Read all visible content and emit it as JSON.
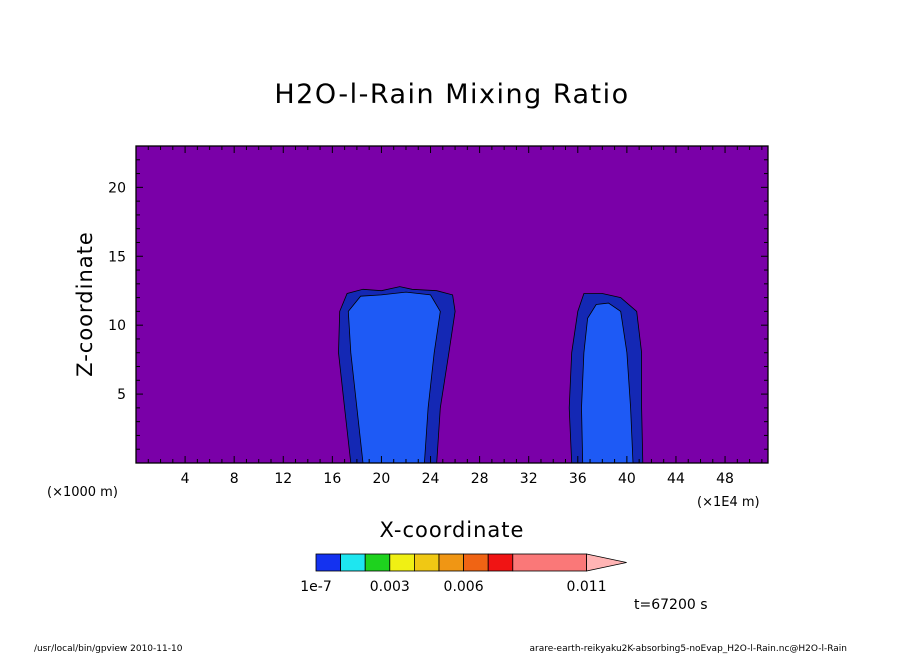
{
  "chart_data": {
    "type": "heatmap",
    "title": "H2O-l-Rain Mixing Ratio",
    "xlabel": "X-coordinate",
    "ylabel": "Z-coordinate",
    "x_unit_left": "(×1000 m)",
    "x_unit_right": "(×1E4 m)",
    "xlim": [
      0,
      51.5
    ],
    "ylim": [
      0,
      23
    ],
    "x_ticks": [
      4,
      8,
      12,
      16,
      20,
      24,
      28,
      32,
      36,
      40,
      44,
      48
    ],
    "y_ticks": [
      5,
      10,
      15,
      20
    ],
    "background_level_color": "#7a00a8",
    "colorbar": {
      "colors": [
        "#1432f0",
        "#1ee6f0",
        "#1ed21e",
        "#f0f014",
        "#f0c814",
        "#f09614",
        "#f06414",
        "#f01414",
        "#fa7878",
        "#ffb4b4"
      ],
      "labels": [
        {
          "text": "1e-7",
          "value": 0
        },
        {
          "text": "0.003",
          "value": 0.003
        },
        {
          "text": "0.006",
          "value": 0.006
        },
        {
          "text": "0.011",
          "value": 0.011
        }
      ]
    },
    "regions": [
      {
        "name": "cloud-1-outer",
        "color": "#1428b4",
        "outline": [
          [
            17.5,
            0
          ],
          [
            17,
            4
          ],
          [
            16.5,
            8
          ],
          [
            16.6,
            11
          ],
          [
            17.2,
            12.3
          ],
          [
            18.5,
            12.6
          ],
          [
            20,
            12.5
          ],
          [
            21.5,
            12.8
          ],
          [
            22.5,
            12.6
          ],
          [
            24.5,
            12.5
          ],
          [
            25.8,
            12.2
          ],
          [
            26,
            11
          ],
          [
            25.5,
            8
          ],
          [
            24.8,
            4
          ],
          [
            24.5,
            0
          ]
        ]
      },
      {
        "name": "cloud-1-inner",
        "color": "#1e5af5",
        "outline": [
          [
            18.5,
            0
          ],
          [
            18,
            4
          ],
          [
            17.5,
            8
          ],
          [
            17.3,
            11
          ],
          [
            18.3,
            12.1
          ],
          [
            20,
            12.2
          ],
          [
            22,
            12.4
          ],
          [
            24,
            12.2
          ],
          [
            24.8,
            11
          ],
          [
            24.3,
            8
          ],
          [
            23.8,
            4
          ],
          [
            23.5,
            0
          ]
        ]
      },
      {
        "name": "cloud-2-outer",
        "color": "#1428b4",
        "outline": [
          [
            35.5,
            0
          ],
          [
            35.3,
            4
          ],
          [
            35.5,
            8
          ],
          [
            36,
            11
          ],
          [
            36.5,
            12.3
          ],
          [
            38,
            12.3
          ],
          [
            39.5,
            12
          ],
          [
            40.8,
            11
          ],
          [
            41.2,
            8
          ],
          [
            41.2,
            4
          ],
          [
            41.3,
            0
          ]
        ]
      },
      {
        "name": "cloud-2-inner",
        "color": "#1e5af5",
        "outline": [
          [
            36.4,
            0
          ],
          [
            36.3,
            4
          ],
          [
            36.5,
            8
          ],
          [
            36.8,
            10.5
          ],
          [
            37.5,
            11.5
          ],
          [
            38.5,
            11.6
          ],
          [
            39.5,
            11
          ],
          [
            40,
            8
          ],
          [
            40.3,
            4
          ],
          [
            40.5,
            0
          ]
        ]
      }
    ]
  },
  "time_label": "t=67200 s",
  "footer_left": "/usr/local/bin/gpview   2010-11-10",
  "footer_right": "arare-earth-reikyaku2K-absorbing5-noEvap_H2O-l-Rain.nc@H2O-l-Rain"
}
